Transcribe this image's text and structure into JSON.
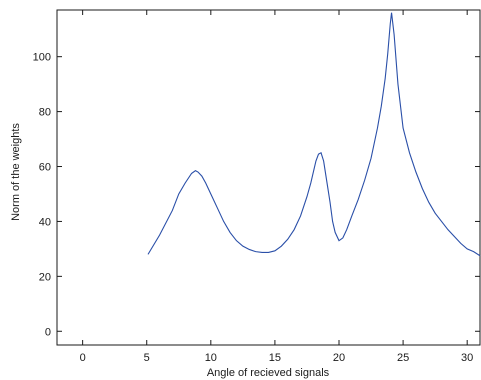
{
  "chart_data": {
    "type": "line",
    "title": "",
    "xlabel": "Angle of recieved signals",
    "ylabel": "Norm of the weights",
    "xlim": [
      -2,
      31
    ],
    "ylim": [
      -5,
      117
    ],
    "xticks": [
      0,
      5,
      10,
      15,
      20,
      25,
      30
    ],
    "yticks": [
      0,
      20,
      40,
      60,
      80,
      100
    ],
    "grid": false,
    "line_color": "#2a4fa8",
    "series": [
      {
        "x": [
          5.1,
          6,
          7,
          7.5,
          8,
          8.5,
          8.8,
          9.0,
          9.3,
          9.6,
          10,
          10.5,
          11,
          11.5,
          12,
          12.5,
          13,
          13.5,
          14,
          14.5,
          15,
          15.5,
          16,
          16.5,
          17,
          17.5,
          17.8,
          18.0,
          18.2,
          18.4,
          18.6,
          18.8,
          19.0,
          19.3,
          19.5,
          19.7,
          20.0,
          20.3,
          20.6,
          21,
          21.5,
          22,
          22.5,
          23,
          23.3,
          23.6,
          23.8,
          24.0,
          24.1,
          24.3,
          24.6,
          25,
          25.5,
          26,
          26.5,
          27,
          27.5,
          28,
          28.5,
          29,
          29.5,
          30,
          30.5,
          31
        ],
        "y": [
          28,
          35,
          44,
          50,
          54,
          57.5,
          58.5,
          58.0,
          56.5,
          54,
          50,
          45,
          40,
          36,
          33,
          31,
          29.8,
          29,
          28.7,
          28.7,
          29.3,
          31,
          33.5,
          37,
          42,
          49,
          54,
          58,
          62,
          64.5,
          65,
          62,
          56,
          47,
          40,
          36,
          33,
          34,
          37,
          42,
          48,
          55,
          63,
          74,
          82,
          92,
          101,
          112,
          116,
          108,
          90,
          74,
          65,
          58,
          52,
          47,
          43,
          40,
          37,
          34.5,
          32,
          30,
          29,
          27.5
        ]
      }
    ]
  }
}
